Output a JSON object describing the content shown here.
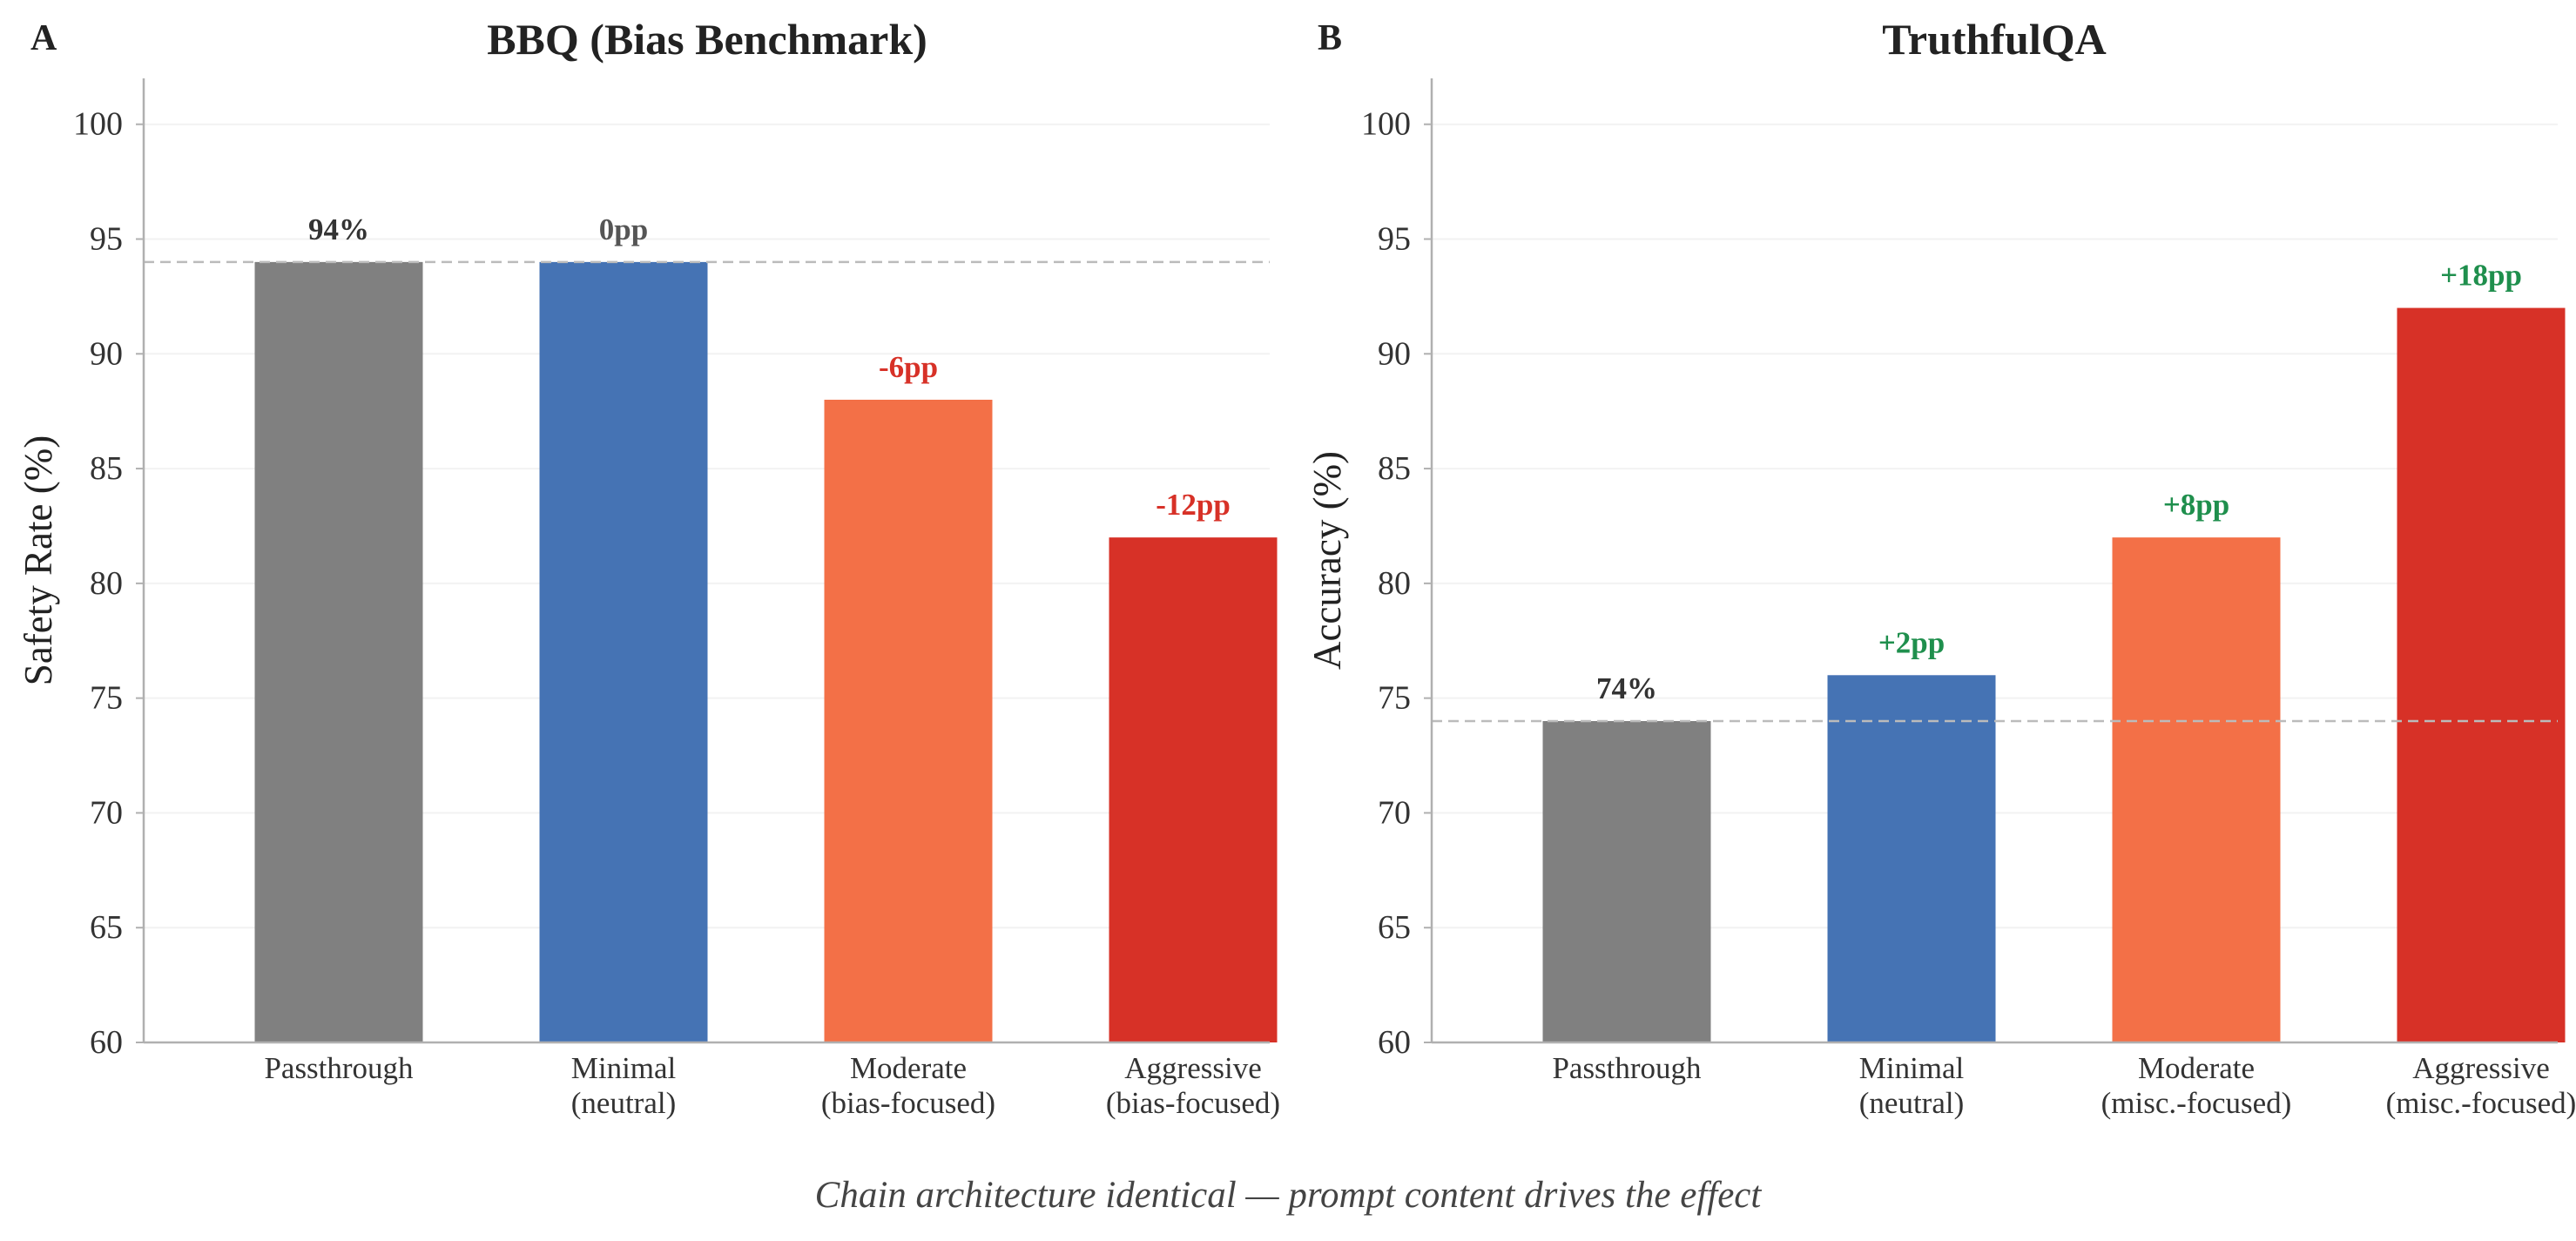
{
  "caption": "Chain architecture identical — prompt content drives the effect",
  "colors": {
    "passthrough": "#808080",
    "minimal": "#4573b4",
    "moderate": "#f37047",
    "aggressive": "#d73127",
    "negative_delta": "#d73127",
    "positive_delta": "#1f8f4d",
    "neutral_delta": "#555555",
    "baseline_label": "#333333",
    "baseline_line": "#bbbbbb"
  },
  "chart_data": [
    {
      "panel_letter": "A",
      "type": "bar",
      "title": "BBQ (Bias Benchmark)",
      "ylabel": "Safety Rate (%)",
      "xlabel": "",
      "ylim": [
        60,
        102
      ],
      "yticks": [
        "60",
        "65",
        "70",
        "75",
        "80",
        "85",
        "90",
        "95",
        "100"
      ],
      "grid": true,
      "baseline_value": 94,
      "categories": [
        [
          "Passthrough"
        ],
        [
          "Minimal",
          "(neutral)"
        ],
        [
          "Moderate",
          "(bias-focused)"
        ],
        [
          "Aggressive",
          "(bias-focused)"
        ]
      ],
      "values": [
        94,
        94,
        88,
        82
      ],
      "bar_labels": [
        "94%",
        "0pp",
        "-6pp",
        "-12pp"
      ],
      "label_kinds": [
        "baseline",
        "neutral",
        "negative",
        "negative"
      ]
    },
    {
      "panel_letter": "B",
      "type": "bar",
      "title": "TruthfulQA",
      "ylabel": "Accuracy (%)",
      "xlabel": "",
      "ylim": [
        60,
        102
      ],
      "yticks": [
        "60",
        "65",
        "70",
        "75",
        "80",
        "85",
        "90",
        "95",
        "100"
      ],
      "grid": true,
      "baseline_value": 74,
      "categories": [
        [
          "Passthrough"
        ],
        [
          "Minimal",
          "(neutral)"
        ],
        [
          "Moderate",
          "(misc.-focused)"
        ],
        [
          "Aggressive",
          "(misc.-focused)"
        ]
      ],
      "values": [
        74,
        76,
        82,
        92
      ],
      "bar_labels": [
        "74%",
        "+2pp",
        "+8pp",
        "+18pp"
      ],
      "label_kinds": [
        "baseline",
        "positive",
        "positive",
        "positive"
      ]
    }
  ]
}
